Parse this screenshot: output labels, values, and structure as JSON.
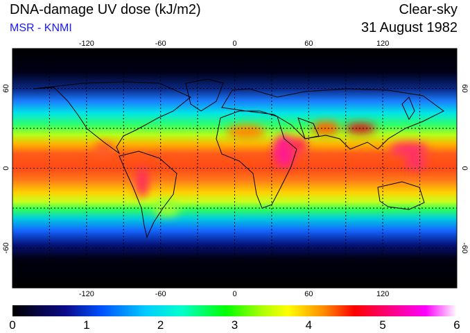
{
  "header": {
    "title": "DNA-damage UV dose (kJ/m2)",
    "subtitle": "MSR - KNMI",
    "sky": "Clear-sky",
    "date": "31 August 1982"
  },
  "map": {
    "projection": "equirectangular",
    "lon_range": [
      -180,
      180
    ],
    "lat_range": [
      -90,
      90
    ],
    "lon_ticks": [
      -120,
      -60,
      0,
      60,
      120
    ],
    "lat_ticks": [
      60,
      0,
      -60
    ],
    "grid_lon": [
      -150,
      -120,
      -90,
      -60,
      -30,
      0,
      30,
      60,
      90,
      120,
      150
    ],
    "grid_lat": [
      60,
      30,
      0,
      -30,
      -60
    ],
    "grid": true,
    "grid_style": "dotted"
  },
  "colorbar": {
    "min": 0,
    "max": 6,
    "ticks": [
      "0",
      "1",
      "2",
      "3",
      "4",
      "5",
      "6"
    ],
    "colors": [
      "#000000",
      "#0000aa",
      "#0050ff",
      "#00ffff",
      "#00ff00",
      "#ffff00",
      "#ff0000",
      "#ff0080",
      "#ff00ff",
      "#ffffff"
    ]
  },
  "colors": {
    "title_text": "#000000",
    "subtitle_text": "#1a1aff",
    "ocean_night": "#000000"
  }
}
